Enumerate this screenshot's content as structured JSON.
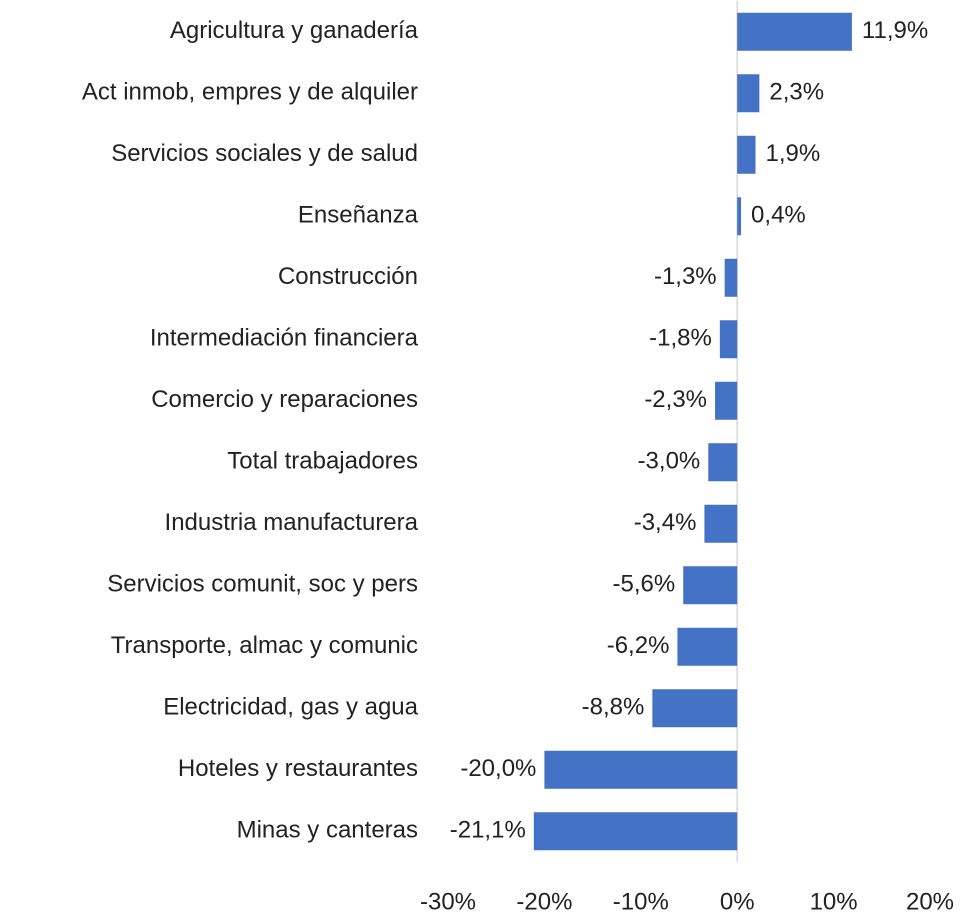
{
  "chart_data": {
    "type": "barh",
    "categories": [
      "Agricultura y ganadería",
      "Act inmob, empres y de alquiler",
      "Servicios sociales y de salud",
      "Enseñanza",
      "Construcción",
      "Intermediación financiera",
      "Comercio y reparaciones",
      "Total trabajadores",
      "Industria manufacturera",
      "Servicios comunit, soc y pers",
      "Transporte, almac y comunic",
      "Electricidad, gas y agua",
      "Hoteles y restaurantes",
      "Minas y canteras"
    ],
    "values": [
      11.9,
      2.3,
      1.9,
      0.4,
      -1.3,
      -1.8,
      -2.3,
      -3.0,
      -3.4,
      -5.6,
      -6.2,
      -8.8,
      -20.0,
      -21.1
    ],
    "value_labels": [
      "11,9%",
      "2,3%",
      "1,9%",
      "0,4%",
      "-1,3%",
      "-1,8%",
      "-2,3%",
      "-3,0%",
      "-3,4%",
      "-5,6%",
      "-6,2%",
      "-8,8%",
      "-20,0%",
      "-21,1%"
    ],
    "color": "#4472c4",
    "xlim": [
      -30,
      20
    ],
    "xticks": [
      {
        "value": -30,
        "label": "-30%"
      },
      {
        "value": -20,
        "label": "-20%"
      },
      {
        "value": -10,
        "label": "-10%"
      },
      {
        "value": 0,
        "label": "0%"
      },
      {
        "value": 10,
        "label": "10%"
      },
      {
        "value": 20,
        "label": "20%"
      }
    ],
    "grid": false
  }
}
